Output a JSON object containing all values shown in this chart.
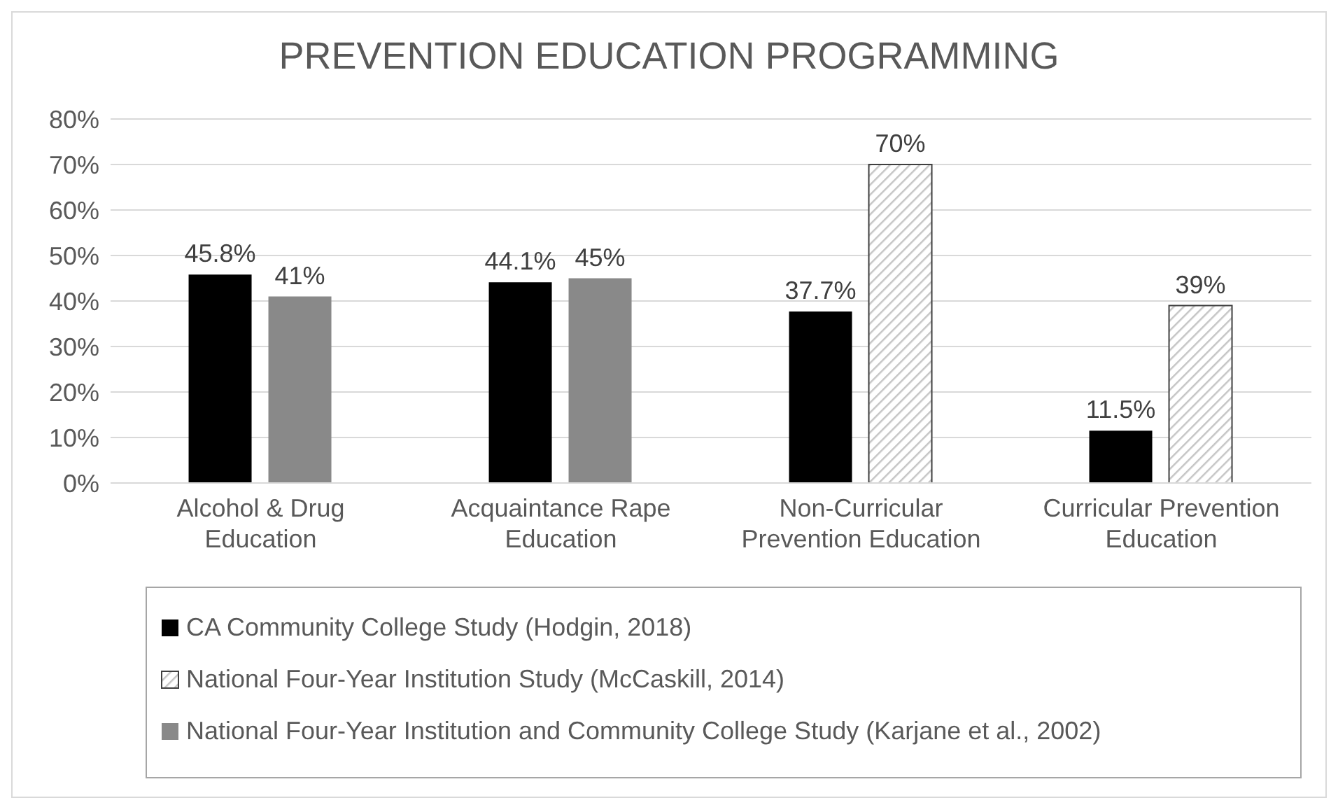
{
  "chart_data": {
    "type": "bar",
    "title": "PREVENTION EDUCATION PROGRAMMING",
    "categories": [
      "Alcohol & Drug Education",
      "Acquaintance Rape Education",
      "Non-Curricular Prevention Education",
      "Curricular Prevention Education"
    ],
    "series": [
      {
        "name": "CA Community College Study (Hodgin, 2018)",
        "color": "#000000",
        "values": [
          45.8,
          44.1,
          37.7,
          11.5
        ],
        "value_labels": [
          "45.8%",
          "44.1%",
          "37.7%",
          "11.5%"
        ]
      },
      {
        "name": "National Four-Year Institution Study (McCaskill, 2014)",
        "color": "#404040",
        "values": [
          null,
          null,
          70,
          39
        ],
        "value_labels": [
          null,
          null,
          "70%",
          "39%"
        ]
      },
      {
        "name": "National Four-Year Institution and Community College Study (Karjane et al., 2002)",
        "color": "#898989",
        "values": [
          41,
          45,
          null,
          null
        ],
        "value_labels": [
          "41%",
          "45%",
          null,
          null
        ]
      }
    ],
    "ylim": [
      0,
      80
    ],
    "yticks": [
      {
        "value": 0,
        "label": "0%"
      },
      {
        "value": 10,
        "label": "10%"
      },
      {
        "value": 20,
        "label": "20%"
      },
      {
        "value": 30,
        "label": "30%"
      },
      {
        "value": 40,
        "label": "40%"
      },
      {
        "value": 50,
        "label": "50%"
      },
      {
        "value": 60,
        "label": "60%"
      },
      {
        "value": 70,
        "label": "70%"
      },
      {
        "value": 80,
        "label": "80%"
      }
    ],
    "grid": "y",
    "legend": "bottom"
  }
}
